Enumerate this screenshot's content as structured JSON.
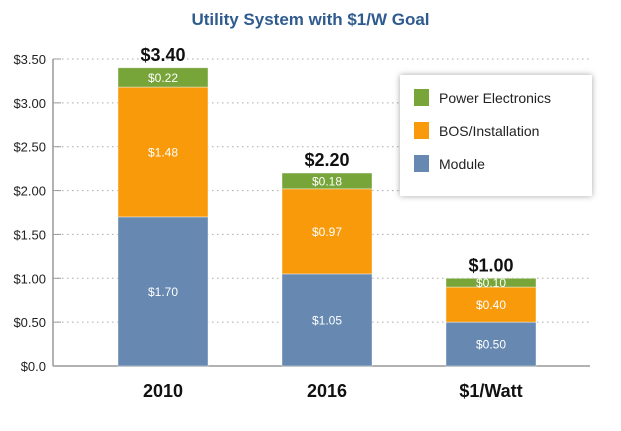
{
  "chart_data": {
    "type": "bar",
    "stacked": true,
    "title": "Utility System with $1/W Goal",
    "categories": [
      "2010",
      "2016",
      "$1/Watt"
    ],
    "series": [
      {
        "name": "Module",
        "color": "#6688b1",
        "values": [
          1.7,
          1.05,
          0.5
        ],
        "labels": [
          "$1.70",
          "$1.05",
          "$0.50"
        ]
      },
      {
        "name": "BOS/Installation",
        "color": "#f99a0b",
        "values": [
          1.48,
          0.97,
          0.4
        ],
        "labels": [
          "$1.48",
          "$0.97",
          "$0.40"
        ]
      },
      {
        "name": "Power Electronics",
        "color": "#77a53a",
        "values": [
          0.22,
          0.18,
          0.1
        ],
        "labels": [
          "$0.22",
          "$0.18",
          "$0.10"
        ]
      }
    ],
    "totals": [
      "$3.40",
      "$2.20",
      "$1.00"
    ],
    "yticks": [
      "$0.0",
      "$0.50",
      "$1.00",
      "$1.50",
      "$2.00",
      "$2.50",
      "$3.00",
      "$3.50"
    ],
    "ytick_values": [
      0,
      0.5,
      1,
      1.5,
      2,
      2.5,
      3,
      3.5
    ],
    "ylim": [
      0,
      3.5
    ],
    "xlabel": "",
    "ylabel": "",
    "grid": true,
    "legend_position": "top-right",
    "legend": [
      "Power Electronics",
      "BOS/Installation",
      "Module"
    ]
  }
}
